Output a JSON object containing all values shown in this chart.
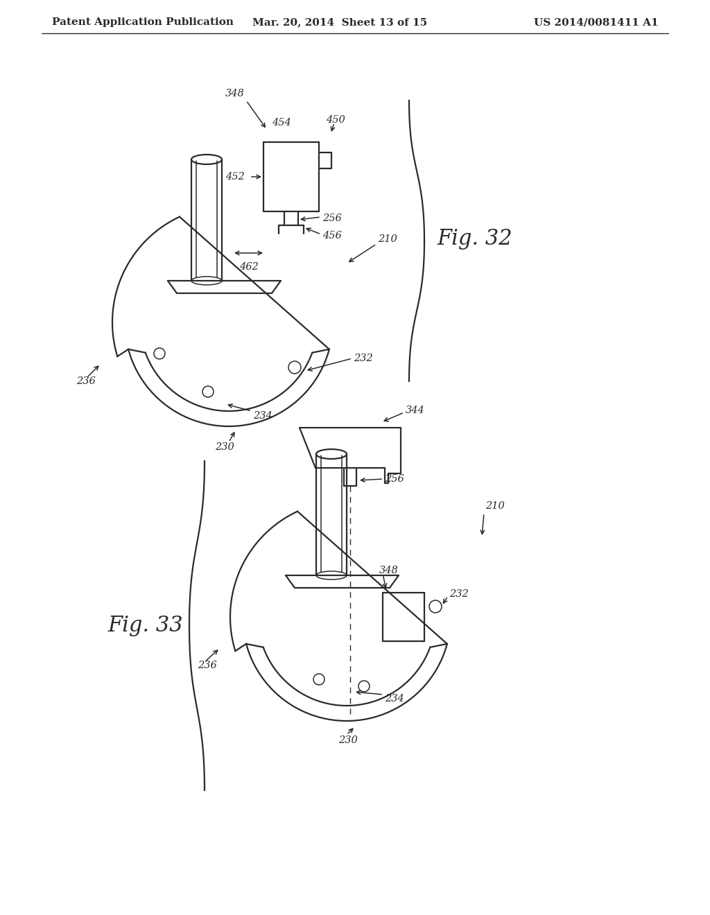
{
  "bg_color": "#ffffff",
  "line_color": "#2a2a2a",
  "header_left": "Patent Application Publication",
  "header_center": "Mar. 20, 2014  Sheet 13 of 15",
  "header_right": "US 2014/0081411 A1",
  "fig32_label": "Fig. 32",
  "fig33_label": "Fig. 33",
  "header_fontsize": 11,
  "fig_label_fontsize": 22,
  "ref_fontsize": 10.5
}
